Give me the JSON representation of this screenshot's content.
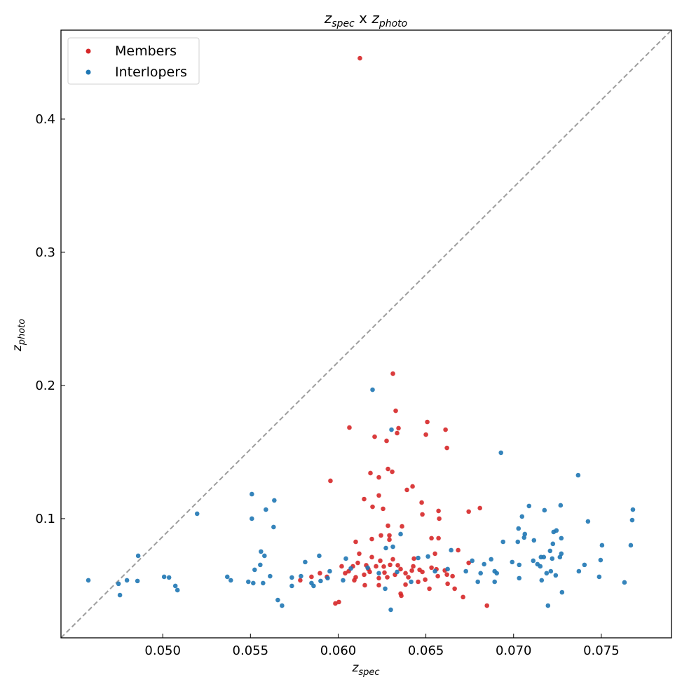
{
  "chart_data": {
    "type": "scatter",
    "title_parts": {
      "z1": "z",
      "sub1": "spec",
      "sep": " x ",
      "z2": "z",
      "sub2": "photo"
    },
    "xlabel_parts": {
      "z": "z",
      "sub": "spec"
    },
    "ylabel_parts": {
      "z": "z",
      "sub": "photo"
    },
    "xlim": [
      0.0442,
      0.079
    ],
    "ylim": [
      0.0105,
      0.4668
    ],
    "xticks": [
      0.05,
      0.055,
      0.06,
      0.065,
      0.07,
      0.075
    ],
    "xtick_labels": [
      "0.050",
      "0.055",
      "0.060",
      "0.065",
      "0.070",
      "0.075"
    ],
    "yticks": [
      0.1,
      0.2,
      0.3,
      0.4
    ],
    "ytick_labels": [
      "0.1",
      "0.2",
      "0.3",
      "0.4"
    ],
    "grid": false,
    "legend": {
      "placement": "top-left",
      "entries": [
        "Members",
        "Interlopers"
      ]
    },
    "reference_line": {
      "style": "dashed",
      "color": "#9e9e9e",
      "from": [
        0.0442,
        0.0105
      ],
      "to": [
        0.079,
        0.4668
      ]
    },
    "series": [
      {
        "name": "Members",
        "color": "#d62728",
        "points": [
          [
            0.06124,
            0.4457
          ],
          [
            0.06312,
            0.2089
          ],
          [
            0.06328,
            0.181
          ],
          [
            0.06344,
            0.1679
          ],
          [
            0.06336,
            0.1642
          ],
          [
            0.06508,
            0.1726
          ],
          [
            0.065,
            0.1631
          ],
          [
            0.06612,
            0.1668
          ],
          [
            0.0662,
            0.1531
          ],
          [
            0.06064,
            0.1684
          ],
          [
            0.06208,
            0.1615
          ],
          [
            0.06276,
            0.1584
          ],
          [
            0.06284,
            0.1373
          ],
          [
            0.06308,
            0.1352
          ],
          [
            0.06184,
            0.1342
          ],
          [
            0.06232,
            0.131
          ],
          [
            0.06424,
            0.1242
          ],
          [
            0.06392,
            0.1216
          ],
          [
            0.05956,
            0.1284
          ],
          [
            0.06148,
            0.1147
          ],
          [
            0.06232,
            0.1174
          ],
          [
            0.06476,
            0.1121
          ],
          [
            0.06196,
            0.1089
          ],
          [
            0.06256,
            0.1074
          ],
          [
            0.0648,
            0.1032
          ],
          [
            0.06744,
            0.1053
          ],
          [
            0.06808,
            0.1079
          ],
          [
            0.06572,
            0.1058
          ],
          [
            0.06576,
            0.1
          ],
          [
            0.06364,
            0.0942
          ],
          [
            0.06284,
            0.0947
          ],
          [
            0.06292,
            0.0874
          ],
          [
            0.06244,
            0.0874
          ],
          [
            0.061,
            0.0826
          ],
          [
            0.06192,
            0.0847
          ],
          [
            0.06532,
            0.0853
          ],
          [
            0.06572,
            0.0853
          ],
          [
            0.06684,
            0.0763
          ],
          [
            0.06292,
            0.0842
          ],
          [
            0.05784,
            0.0537
          ],
          [
            0.05848,
            0.0563
          ],
          [
            0.05896,
            0.059
          ],
          [
            0.05936,
            0.0563
          ],
          [
            0.0602,
            0.0642
          ],
          [
            0.0606,
            0.0605
          ],
          [
            0.06084,
            0.0642
          ],
          [
            0.06112,
            0.0668
          ],
          [
            0.06148,
            0.0579
          ],
          [
            0.06172,
            0.0621
          ],
          [
            0.06216,
            0.0642
          ],
          [
            0.0624,
            0.0684
          ],
          [
            0.06264,
            0.0595
          ],
          [
            0.06296,
            0.0653
          ],
          [
            0.06324,
            0.0579
          ],
          [
            0.06356,
            0.0621
          ],
          [
            0.06384,
            0.059
          ],
          [
            0.06428,
            0.0642
          ],
          [
            0.06464,
            0.0616
          ],
          [
            0.06496,
            0.0542
          ],
          [
            0.06532,
            0.0632
          ],
          [
            0.06568,
            0.0568
          ],
          [
            0.06608,
            0.0611
          ],
          [
            0.06652,
            0.0568
          ],
          [
            0.06744,
            0.0668
          ],
          [
            0.06624,
            0.0511
          ],
          [
            0.06712,
            0.0411
          ],
          [
            0.06848,
            0.0347
          ],
          [
            0.06004,
            0.0374
          ],
          [
            0.05984,
            0.0363
          ],
          [
            0.06356,
            0.0437
          ],
          [
            0.0636,
            0.0421
          ],
          [
            0.06232,
            0.05
          ],
          [
            0.06152,
            0.05
          ],
          [
            0.06456,
            0.0526
          ],
          [
            0.06384,
            0.0505
          ],
          [
            0.06092,
            0.0537
          ],
          [
            0.06232,
            0.0553
          ],
          [
            0.0652,
            0.0474
          ],
          [
            0.06664,
            0.0474
          ],
          [
            0.06552,
            0.0737
          ],
          [
            0.0612,
            0.0737
          ],
          [
            0.06432,
            0.07
          ],
          [
            0.06312,
            0.0695
          ],
          [
            0.06192,
            0.0711
          ],
          [
            0.0604,
            0.059
          ],
          [
            0.061,
            0.056
          ],
          [
            0.0618,
            0.06
          ],
          [
            0.0626,
            0.064
          ],
          [
            0.0634,
            0.065
          ],
          [
            0.064,
            0.056
          ],
          [
            0.0648,
            0.06
          ],
          [
            0.0656,
            0.062
          ],
          [
            0.0662,
            0.058
          ],
          [
            0.0616,
            0.065
          ],
          [
            0.0628,
            0.056
          ],
          [
            0.0642,
            0.061
          ]
        ]
      },
      {
        "name": "Interlopers",
        "color": "#1f77b4",
        "points": [
          [
            0.06196,
            0.1968
          ],
          [
            0.06304,
            0.1668
          ],
          [
            0.06928,
            0.1495
          ],
          [
            0.07368,
            0.1326
          ],
          [
            0.05508,
            0.1184
          ],
          [
            0.05636,
            0.1137
          ],
          [
            0.05588,
            0.1068
          ],
          [
            0.05196,
            0.1037
          ],
          [
            0.05508,
            0.1
          ],
          [
            0.05632,
            0.0937
          ],
          [
            0.07088,
            0.1095
          ],
          [
            0.07268,
            0.11
          ],
          [
            0.07176,
            0.1063
          ],
          [
            0.07048,
            0.1016
          ],
          [
            0.0768,
            0.1068
          ],
          [
            0.07676,
            0.0989
          ],
          [
            0.07424,
            0.0979
          ],
          [
            0.07028,
            0.0926
          ],
          [
            0.07064,
            0.0884
          ],
          [
            0.0706,
            0.0858
          ],
          [
            0.07244,
            0.0911
          ],
          [
            0.07228,
            0.09
          ],
          [
            0.07272,
            0.0853
          ],
          [
            0.07224,
            0.0811
          ],
          [
            0.07024,
            0.0826
          ],
          [
            0.07116,
            0.0837
          ],
          [
            0.0694,
            0.0826
          ],
          [
            0.07504,
            0.08
          ],
          [
            0.07668,
            0.08
          ],
          [
            0.06356,
            0.0884
          ],
          [
            0.07208,
            0.0758
          ],
          [
            0.07272,
            0.0737
          ],
          [
            0.07264,
            0.0711
          ],
          [
            0.07172,
            0.0711
          ],
          [
            0.07156,
            0.0711
          ],
          [
            0.0722,
            0.07
          ],
          [
            0.07496,
            0.0689
          ],
          [
            0.06992,
            0.0674
          ],
          [
            0.07112,
            0.0684
          ],
          [
            0.07136,
            0.0658
          ],
          [
            0.07152,
            0.0642
          ],
          [
            0.07032,
            0.0653
          ],
          [
            0.07404,
            0.0653
          ],
          [
            0.07212,
            0.0605
          ],
          [
            0.07372,
            0.0605
          ],
          [
            0.0724,
            0.0574
          ],
          [
            0.07032,
            0.0553
          ],
          [
            0.07188,
            0.059
          ],
          [
            0.07488,
            0.0563
          ],
          [
            0.0716,
            0.0537
          ],
          [
            0.07632,
            0.0521
          ],
          [
            0.07276,
            0.0447
          ],
          [
            0.07196,
            0.0347
          ],
          [
            0.0486,
            0.0721
          ],
          [
            0.04576,
            0.0537
          ],
          [
            0.04748,
            0.0511
          ],
          [
            0.04796,
            0.0537
          ],
          [
            0.04856,
            0.0532
          ],
          [
            0.04756,
            0.0426
          ],
          [
            0.05008,
            0.0563
          ],
          [
            0.05036,
            0.0558
          ],
          [
            0.05072,
            0.0495
          ],
          [
            0.05084,
            0.0463
          ],
          [
            0.05368,
            0.0563
          ],
          [
            0.05388,
            0.0537
          ],
          [
            0.05488,
            0.0526
          ],
          [
            0.05516,
            0.0516
          ],
          [
            0.05572,
            0.0516
          ],
          [
            0.05524,
            0.0616
          ],
          [
            0.05556,
            0.0653
          ],
          [
            0.0556,
            0.0753
          ],
          [
            0.0558,
            0.0721
          ],
          [
            0.05612,
            0.0568
          ],
          [
            0.05656,
            0.0389
          ],
          [
            0.0568,
            0.0347
          ],
          [
            0.05736,
            0.0495
          ],
          [
            0.05736,
            0.0558
          ],
          [
            0.05788,
            0.0568
          ],
          [
            0.05812,
            0.0674
          ],
          [
            0.05848,
            0.0516
          ],
          [
            0.0586,
            0.0495
          ],
          [
            0.05892,
            0.0721
          ],
          [
            0.059,
            0.0532
          ],
          [
            0.0594,
            0.0553
          ],
          [
            0.05952,
            0.0605
          ],
          [
            0.06028,
            0.0537
          ],
          [
            0.06044,
            0.07
          ],
          [
            0.06072,
            0.0626
          ],
          [
            0.06168,
            0.0632
          ],
          [
            0.06272,
            0.0779
          ],
          [
            0.06312,
            0.0789
          ],
          [
            0.06268,
            0.0474
          ],
          [
            0.063,
            0.0316
          ],
          [
            0.06416,
            0.0526
          ],
          [
            0.06456,
            0.0705
          ],
          [
            0.06512,
            0.0716
          ],
          [
            0.06644,
            0.0763
          ],
          [
            0.06552,
            0.0605
          ],
          [
            0.06624,
            0.0621
          ],
          [
            0.06728,
            0.0605
          ],
          [
            0.06796,
            0.0526
          ],
          [
            0.06812,
            0.059
          ],
          [
            0.06832,
            0.0658
          ],
          [
            0.06764,
            0.0684
          ],
          [
            0.06872,
            0.0695
          ],
          [
            0.06892,
            0.0605
          ],
          [
            0.06892,
            0.0526
          ],
          [
            0.06904,
            0.059
          ],
          [
            0.06232,
            0.059
          ],
          [
            0.06336,
            0.06
          ]
        ]
      }
    ]
  }
}
